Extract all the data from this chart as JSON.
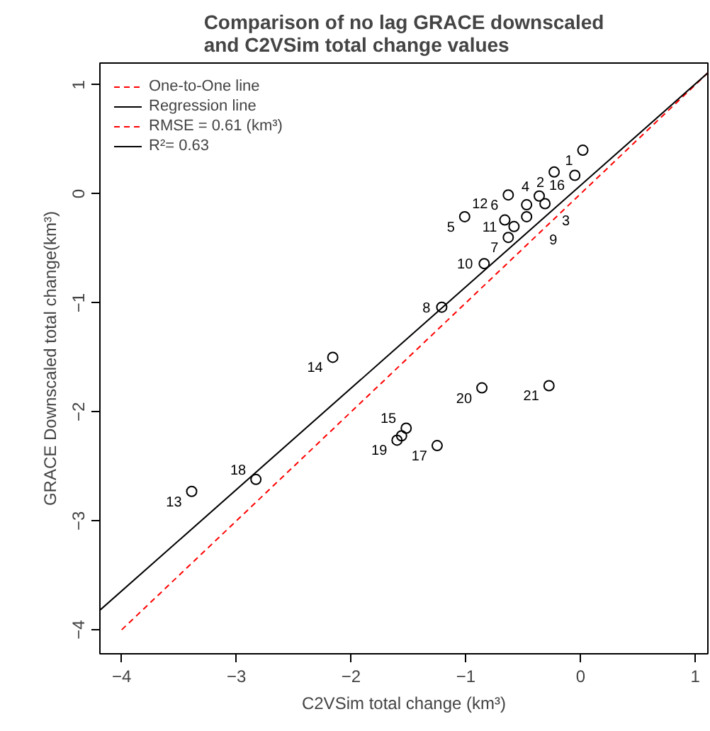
{
  "chart_data": {
    "type": "scatter",
    "title": "Comparison of no lag GRACE downscaled\nand C2VSim total change values",
    "xlabel": "C2VSim total change (km³)",
    "ylabel": "GRACE Downscaled total change(km³)",
    "xlim": [
      -4.19,
      1.11
    ],
    "ylim": [
      -4.22,
      1.2
    ],
    "xticks": [
      -4,
      -3,
      -2,
      -1,
      0,
      1
    ],
    "yticks": [
      -4,
      -3,
      -2,
      -1,
      0,
      1
    ],
    "grid": false,
    "legend": "top left",
    "marker": "circle",
    "series": [
      {
        "color": "#000000",
        "x": [
          0.02,
          -0.23,
          -0.31,
          -0.36,
          -1.01,
          -0.63,
          -0.63,
          -1.21,
          -0.47,
          -0.84,
          -0.58,
          -0.66,
          -3.39,
          -2.16,
          -1.52,
          -0.05,
          -1.25,
          -2.83,
          -1.6,
          -0.86,
          -0.275,
          -0.47,
          -1.56
        ],
        "values": [
          0.4,
          0.2,
          -0.09,
          -0.02,
          -0.21,
          -0.01,
          -0.4,
          -1.04,
          -0.21,
          -0.64,
          -0.3,
          -0.24,
          -2.73,
          -1.5,
          -2.15,
          0.17,
          -2.31,
          -2.62,
          -2.26,
          -1.78,
          -1.76,
          -0.1,
          -2.22
        ]
      },
      {
        "type": "line",
        "marker": "none",
        "name": "One-to-One line",
        "color": "#ff0000",
        "line_style": "dashed",
        "x": [
          -4,
          1.11
        ],
        "values": [
          -4,
          1.11
        ]
      },
      {
        "type": "line",
        "marker": "none",
        "name": "Regression line",
        "color": "#000000",
        "line_style": "solid",
        "x": [
          -4.19,
          1.11
        ],
        "values": [
          -3.82,
          1.11
        ]
      }
    ],
    "annotations": [
      "RMSE = 0.61 (km³)",
      "R²= 0.63",
      {
        "text": "1",
        "x": 0.02,
        "y": 0.4
      },
      {
        "text": "2",
        "x": -0.23,
        "y": 0.2
      },
      {
        "text": "3",
        "x": -0.31,
        "y": -0.09
      },
      {
        "text": "4",
        "x": -0.36,
        "y": -0.02
      },
      {
        "text": "5",
        "x": -1.01,
        "y": -0.21
      },
      {
        "text": "6",
        "x": -0.63,
        "y": -0.01
      },
      {
        "text": "7",
        "x": -0.63,
        "y": -0.4
      },
      {
        "text": "8",
        "x": -1.21,
        "y": -1.04
      },
      {
        "text": "9",
        "x": -0.47,
        "y": -0.21
      },
      {
        "text": "10",
        "x": -0.84,
        "y": -0.64
      },
      {
        "text": "11",
        "x": -0.58,
        "y": -0.3
      },
      {
        "text": "12",
        "x": -0.66,
        "y": -0.24
      },
      {
        "text": "13",
        "x": -3.39,
        "y": -2.73
      },
      {
        "text": "14",
        "x": -2.16,
        "y": -1.5
      },
      {
        "text": "15",
        "x": -1.52,
        "y": -2.15
      },
      {
        "text": "16",
        "x": -0.05,
        "y": 0.17
      },
      {
        "text": "17",
        "x": -1.25,
        "y": -2.31
      },
      {
        "text": "18",
        "x": -2.83,
        "y": -2.62
      },
      {
        "text": "19",
        "x": -1.6,
        "y": -2.26
      },
      {
        "text": "20",
        "x": -0.86,
        "y": -1.78
      },
      {
        "text": "21",
        "x": -0.275,
        "y": -1.76
      }
    ]
  }
}
